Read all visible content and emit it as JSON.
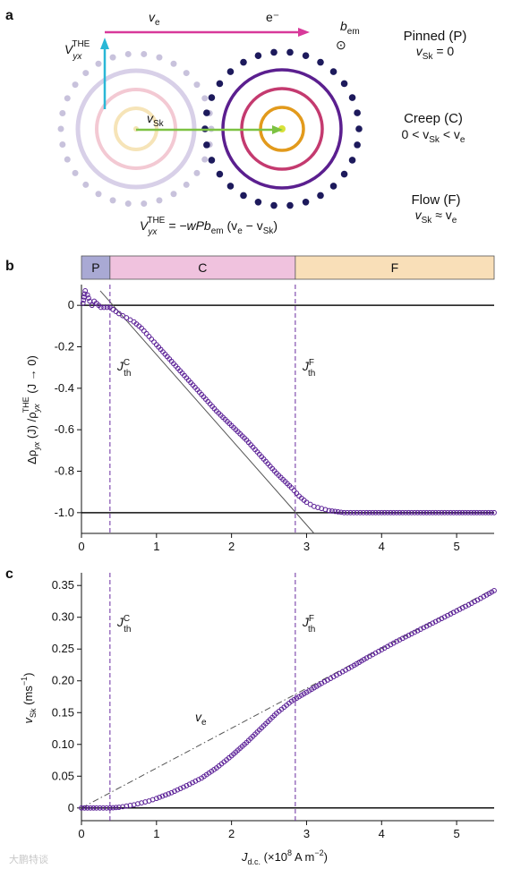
{
  "panel_a": {
    "letter": "a",
    "labels": {
      "ve_main": "v",
      "ve_sub": "e",
      "electron": "e⁻",
      "bem_main": "b",
      "bem_sub": "em",
      "bem_symbol": "⊙",
      "vthe_main": "V",
      "vthe_sub": "yx",
      "vthe_sup": "THE",
      "vsk_main": "v",
      "vsk_sub": "Sk",
      "formula": {
        "lhs_main": "V",
        "lhs_sub": "yx",
        "lhs_sup": "THE",
        "mid": " = −wPb",
        "mid_sub": "em",
        "paren_open": " (v",
        "paren_sub1": "e",
        "minus": " − v",
        "paren_sub2": "Sk",
        "paren_close": ")"
      }
    },
    "regimes": [
      {
        "title": "Pinned (P)",
        "pre": "v",
        "sub": "Sk",
        "post": " = 0"
      },
      {
        "title": "Creep (C)",
        "pre": "0 < v",
        "sub": "Sk",
        "post": " < v",
        "sub2": "e"
      },
      {
        "title": "Flow (F)",
        "pre": "v",
        "sub": "Sk",
        "post": " ≈ v",
        "sub2": "e"
      }
    ],
    "colors": {
      "ve_arrow": "#d8399a",
      "vthe_arrow": "#29b7d6",
      "vsk_arrow": "#7cc242",
      "dot_dark": "#1d1a5c",
      "ring_purple": "#5b1f8f",
      "ring_pink": "#c43a6f",
      "ring_orange": "#e29a1c",
      "ghost": "#c8c2dc"
    }
  },
  "panel_b": {
    "letter": "b",
    "bands": [
      {
        "label": "P",
        "start": 0,
        "end": 0.38,
        "color": "#a9a9d4"
      },
      {
        "label": "C",
        "start": 0.38,
        "end": 2.85,
        "color": "#f0c2de"
      },
      {
        "label": "F",
        "start": 2.85,
        "end": 5.5,
        "color": "#f9dfb8"
      }
    ],
    "ylabel": {
      "delta": "Δρ",
      "sub1": "yx",
      "mid": " (J) /ρ",
      "sub2": "yx",
      "sup": "THE",
      "tail": " (J → 0)"
    },
    "chart_data": {
      "type": "scatter",
      "x_axis": {
        "min": 0,
        "max": 5.5,
        "ticks": [
          0,
          1,
          2,
          3,
          4,
          5
        ],
        "tick_labels": [
          "0",
          "1",
          "2",
          "3",
          "4",
          "5"
        ]
      },
      "y_axis": {
        "min": -1.1,
        "max": 0.1,
        "ticks": [
          0,
          -0.2,
          -0.4,
          -0.6,
          -0.8,
          -1.0
        ],
        "tick_labels": [
          "0",
          "-0.2",
          "-0.4",
          "-0.6",
          "-0.8",
          "-1.0"
        ]
      },
      "thresholds": [
        {
          "x": 0.38,
          "label_main": "J",
          "label_sup": "C",
          "label_sub": "th"
        },
        {
          "x": 2.85,
          "label_main": "J",
          "label_sup": "F",
          "label_sub": "th"
        }
      ],
      "reference_lines": [
        {
          "y": 0,
          "style": "solid"
        },
        {
          "y": -1.0,
          "style": "solid"
        }
      ],
      "guide_line": {
        "x1": 0.25,
        "y1": 0.07,
        "x2": 3.1,
        "y2": -1.1
      },
      "series": [
        {
          "marker_color": "#5a1f96",
          "points": [
            [
              0.02,
              0.01
            ],
            [
              0.05,
              0.07
            ],
            [
              0.08,
              0.05
            ],
            [
              0.11,
              0.02
            ],
            [
              0.14,
              0.0
            ],
            [
              0.17,
              0.02
            ],
            [
              0.2,
              0.01
            ],
            [
              0.23,
              0.0
            ],
            [
              0.26,
              -0.01
            ],
            [
              0.3,
              -0.01
            ],
            [
              0.34,
              -0.01
            ],
            [
              0.38,
              -0.01
            ],
            [
              0.42,
              -0.02
            ],
            [
              0.5,
              -0.04
            ],
            [
              0.6,
              -0.06
            ],
            [
              0.7,
              -0.08
            ],
            [
              0.8,
              -0.11
            ],
            [
              0.9,
              -0.15
            ],
            [
              1.0,
              -0.19
            ],
            [
              1.2,
              -0.27
            ],
            [
              1.4,
              -0.35
            ],
            [
              1.6,
              -0.43
            ],
            [
              1.8,
              -0.51
            ],
            [
              2.0,
              -0.58
            ],
            [
              2.2,
              -0.65
            ],
            [
              2.4,
              -0.73
            ],
            [
              2.6,
              -0.81
            ],
            [
              2.8,
              -0.88
            ],
            [
              2.9,
              -0.92
            ],
            [
              3.0,
              -0.95
            ],
            [
              3.1,
              -0.97
            ],
            [
              3.2,
              -0.98
            ],
            [
              3.3,
              -0.99
            ],
            [
              3.5,
              -1.0
            ],
            [
              3.8,
              -1.0
            ],
            [
              4.2,
              -1.0
            ],
            [
              4.6,
              -1.0
            ],
            [
              5.0,
              -1.0
            ],
            [
              5.5,
              -1.0
            ]
          ]
        }
      ]
    }
  },
  "panel_c": {
    "letter": "c",
    "ylabel": {
      "main": "v",
      "sub": "Sk",
      "unit": " (ms",
      "unit_sup": "−1",
      "unit_close": ")"
    },
    "xlabel": {
      "main": "J",
      "sub": "d.c.",
      "unit": " (×10",
      "unit_sup": "8",
      "unit_tail": " A m",
      "unit_sup2": "−2",
      "unit_close": ")"
    },
    "ve_label_main": "v",
    "ve_label_sub": "e",
    "chart_data": {
      "type": "scatter",
      "x_axis": {
        "min": 0,
        "max": 5.5,
        "ticks": [
          0,
          1,
          2,
          3,
          4,
          5
        ],
        "tick_labels": [
          "0",
          "1",
          "2",
          "3",
          "4",
          "5"
        ]
      },
      "y_axis": {
        "min": -0.02,
        "max": 0.37,
        "ticks": [
          0,
          0.05,
          0.1,
          0.15,
          0.2,
          0.25,
          0.3,
          0.35
        ],
        "tick_labels": [
          "0",
          "0.05",
          "0.10",
          "0.15",
          "0.20",
          "0.25",
          "0.30",
          "0.35"
        ]
      },
      "thresholds": [
        {
          "x": 0.38,
          "label_main": "J",
          "label_sup": "C",
          "label_sub": "th"
        },
        {
          "x": 2.85,
          "label_main": "J",
          "label_sup": "F",
          "label_sub": "th"
        }
      ],
      "reference_lines": [
        {
          "y": 0,
          "style": "solid"
        }
      ],
      "ve_line": {
        "x1": 0,
        "y1": 0.0,
        "x2": 5.5,
        "y2": 0.345
      },
      "series": [
        {
          "marker_color": "#5a1f96",
          "points": [
            [
              0.0,
              0.0
            ],
            [
              0.2,
              0.0
            ],
            [
              0.38,
              0.0
            ],
            [
              0.5,
              0.001
            ],
            [
              0.6,
              0.003
            ],
            [
              0.7,
              0.005
            ],
            [
              0.8,
              0.008
            ],
            [
              0.9,
              0.011
            ],
            [
              1.0,
              0.015
            ],
            [
              1.2,
              0.024
            ],
            [
              1.4,
              0.035
            ],
            [
              1.6,
              0.047
            ],
            [
              1.8,
              0.063
            ],
            [
              2.0,
              0.082
            ],
            [
              2.2,
              0.103
            ],
            [
              2.4,
              0.126
            ],
            [
              2.6,
              0.149
            ],
            [
              2.8,
              0.168
            ],
            [
              3.0,
              0.182
            ],
            [
              3.2,
              0.196
            ],
            [
              3.4,
              0.209
            ],
            [
              3.6,
              0.222
            ],
            [
              3.8,
              0.236
            ],
            [
              4.0,
              0.249
            ],
            [
              4.2,
              0.262
            ],
            [
              4.4,
              0.274
            ],
            [
              4.6,
              0.286
            ],
            [
              4.8,
              0.298
            ],
            [
              5.0,
              0.31
            ],
            [
              5.2,
              0.322
            ],
            [
              5.4,
              0.335
            ],
            [
              5.5,
              0.342
            ]
          ]
        }
      ]
    }
  },
  "watermark": "大鹏特谈"
}
